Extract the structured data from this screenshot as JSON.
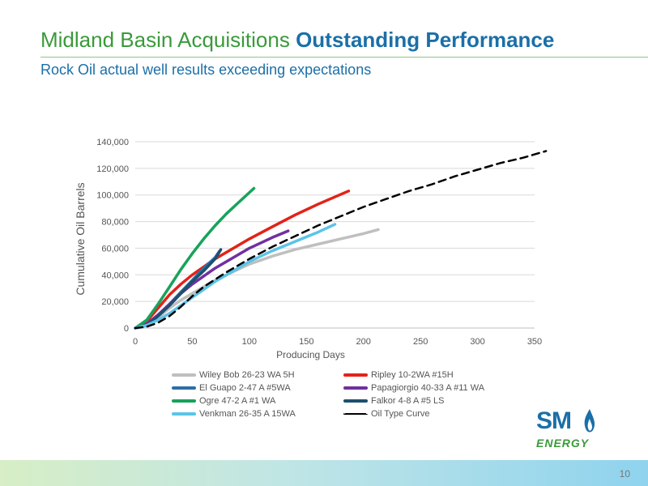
{
  "slide": {
    "title_main": "Midland Basin Acquisitions ",
    "title_bold": "Outstanding Performance",
    "subtitle": "Rock Oil actual well results exceeding expectations",
    "page_number": "10"
  },
  "logo": {
    "sm": "SM",
    "energy": "ENERGY"
  },
  "colors": {
    "title_green": "#3a9a3a",
    "title_blue": "#1b6fa8"
  },
  "chart_data": {
    "type": "line",
    "title": "",
    "xlabel": "Producing Days",
    "ylabel": "Cumulative Oil Barrels",
    "xlim": [
      0,
      350
    ],
    "ylim": [
      0,
      140000
    ],
    "x_ticks": [
      0,
      50,
      100,
      150,
      200,
      250,
      300,
      350
    ],
    "y_ticks": [
      0,
      20000,
      40000,
      60000,
      80000,
      100000,
      120000,
      140000
    ],
    "x_tick_labels": [
      "0",
      "50",
      "100",
      "150",
      "200",
      "250",
      "300",
      "350"
    ],
    "y_tick_labels": [
      "0",
      "20,000",
      "40,000",
      "60,000",
      "80,000",
      "100,000",
      "120,000",
      "140,000"
    ],
    "grid": "horizontal",
    "legend_position": "bottom",
    "series": [
      {
        "name": "Wiley Bob 26-23 WA 5H",
        "color": "#bfbfbf",
        "dash": false,
        "x": [
          0,
          10,
          20,
          30,
          40,
          50,
          60,
          70,
          80,
          90,
          100,
          120,
          140,
          160,
          180,
          200,
          213
        ],
        "y": [
          0,
          2000,
          8000,
          15000,
          21000,
          26000,
          31000,
          36000,
          40000,
          44000,
          48000,
          54000,
          59000,
          63000,
          67000,
          71000,
          74000
        ]
      },
      {
        "name": "Ripley 10-2WA #15H",
        "color": "#e32219",
        "dash": false,
        "x": [
          0,
          10,
          20,
          30,
          40,
          50,
          60,
          70,
          80,
          90,
          100,
          120,
          140,
          160,
          187
        ],
        "y": [
          0,
          5000,
          15000,
          25000,
          33000,
          40000,
          46000,
          52000,
          57000,
          62000,
          67000,
          76000,
          85000,
          93000,
          103000
        ]
      },
      {
        "name": "El Guapo 2-47 A #5WA",
        "color": "#2e6fa7",
        "dash": false,
        "x": [
          0,
          10,
          20,
          30,
          40,
          50,
          60,
          70,
          74
        ],
        "y": [
          0,
          2000,
          9000,
          18000,
          27000,
          36000,
          45000,
          53000,
          58000
        ]
      },
      {
        "name": "Papagiorgio 40-33 A #11 WA",
        "color": "#7030a0",
        "dash": false,
        "x": [
          0,
          10,
          20,
          30,
          40,
          50,
          60,
          70,
          80,
          90,
          100,
          110,
          120,
          134
        ],
        "y": [
          0,
          3000,
          10000,
          18000,
          26000,
          33000,
          39000,
          45000,
          50000,
          55000,
          60000,
          64000,
          68000,
          73000
        ]
      },
      {
        "name": "Ogre 47-2 A #1 WA",
        "color": "#17a35a",
        "dash": false,
        "x": [
          0,
          10,
          20,
          30,
          40,
          50,
          60,
          70,
          80,
          90,
          104
        ],
        "y": [
          0,
          6000,
          18000,
          31000,
          44000,
          56000,
          67000,
          77000,
          86000,
          94000,
          105000
        ]
      },
      {
        "name": "Falkor 4-8 A #5 LS",
        "color": "#1d4f6e",
        "dash": false,
        "x": [
          0,
          10,
          20,
          30,
          40,
          50,
          60,
          70,
          75
        ],
        "y": [
          0,
          2000,
          9000,
          17000,
          26000,
          35000,
          43000,
          52000,
          59000
        ]
      },
      {
        "name": "Venkman 26-35 A 15WA",
        "color": "#5bc4e8",
        "dash": false,
        "x": [
          0,
          10,
          20,
          30,
          40,
          50,
          60,
          70,
          80,
          90,
          100,
          110,
          120,
          140,
          160,
          175
        ],
        "y": [
          0,
          2000,
          6000,
          11000,
          17000,
          23000,
          29000,
          35000,
          40000,
          45000,
          50000,
          54000,
          58000,
          65000,
          72000,
          78000
        ]
      },
      {
        "name": "Oil Type Curve",
        "color": "#000000",
        "dash": true,
        "x": [
          0,
          10,
          20,
          30,
          40,
          50,
          60,
          80,
          100,
          120,
          140,
          160,
          180,
          200,
          220,
          240,
          260,
          280,
          300,
          320,
          340,
          360
        ],
        "y": [
          0,
          1000,
          4000,
          9000,
          16000,
          24000,
          31000,
          42000,
          52000,
          61000,
          69000,
          77000,
          84000,
          91000,
          97000,
          103000,
          108000,
          114000,
          119000,
          124000,
          128000,
          133000
        ]
      }
    ]
  }
}
